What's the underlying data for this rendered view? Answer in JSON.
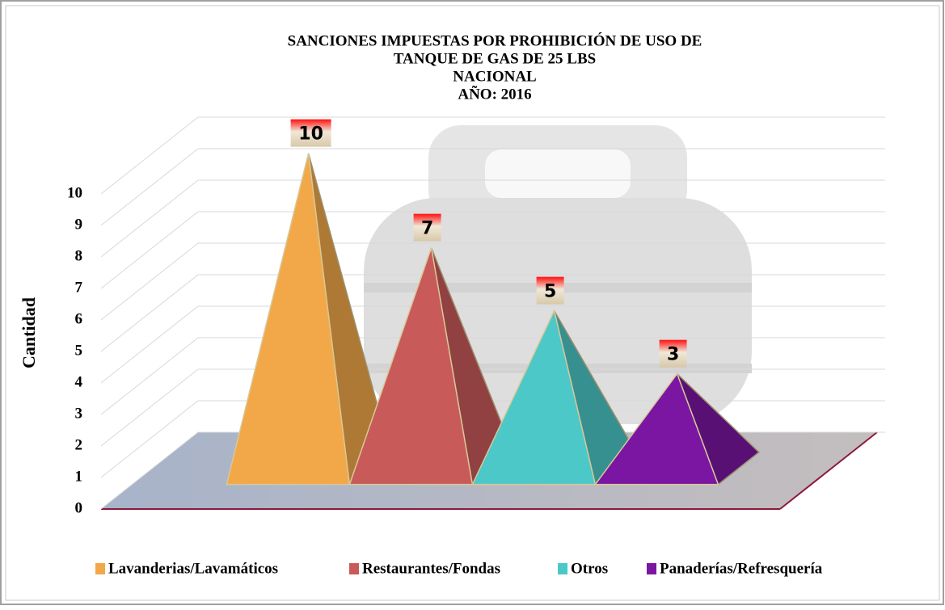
{
  "chart_data": {
    "type": "pyramid",
    "title": [
      "SANCIONES IMPUESTAS POR PROHIBICIÓN DE USO DE",
      "TANQUE DE GAS DE 25 LBS",
      "NACIONAL",
      "AÑO: 2016"
    ],
    "y_axis_label": "Cantidad",
    "categories": [
      "Lavanderias/Lavamáticos",
      "Restaurantes/Fondas",
      "Otros",
      "Panaderías/Refresquería"
    ],
    "series": [
      {
        "name": null,
        "colors": [
          "#f2a848",
          "#c95a5a",
          "#4cc8c8",
          "#7a16a2"
        ],
        "values": [
          10,
          7,
          5,
          3
        ]
      }
    ],
    "ylim": [
      0,
      10
    ],
    "yticks": [
      0,
      1,
      2,
      3,
      4,
      5,
      6,
      7,
      8,
      9,
      10
    ],
    "grid": true,
    "legend": "bottom"
  }
}
